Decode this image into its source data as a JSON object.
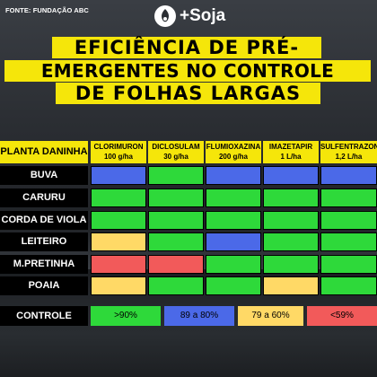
{
  "source": "FONTE: FUNDAÇÃO ABC",
  "brand": "+Soja",
  "title_lines": [
    "EFICIÊNCIA DE PRÉ-",
    "EMERGENTES NO CONTROLE",
    "DE FOLHAS LARGAS"
  ],
  "table": {
    "plant_header": "PLANTA DANINHA",
    "herbicides": [
      {
        "name": "CLORIMURON",
        "dose": "100 g/ha"
      },
      {
        "name": "DICLOSULAM",
        "dose": "30 g/ha"
      },
      {
        "name": "FLUMIOXAZINA",
        "dose": "200 g/ha"
      },
      {
        "name": "IMAZETAPIR",
        "dose": "1 L/ha"
      },
      {
        "name": "SULFENTRAZONE",
        "dose": "1,2 L/ha"
      }
    ],
    "rows": [
      {
        "plant": "BUVA",
        "levels": [
          "blue",
          "green",
          "blue",
          "blue",
          "blue"
        ]
      },
      {
        "plant": "CARURU",
        "levels": [
          "green",
          "green",
          "green",
          "green",
          "green"
        ]
      },
      {
        "plant": "CORDA DE VIOLA",
        "levels": [
          "green",
          "green",
          "green",
          "green",
          "green"
        ]
      },
      {
        "plant": "LEITEIRO",
        "levels": [
          "yellow",
          "green",
          "blue",
          "green",
          "green"
        ]
      },
      {
        "plant": "M.PRETINHA",
        "levels": [
          "red",
          "red",
          "green",
          "green",
          "green"
        ]
      },
      {
        "plant": "POAIA",
        "levels": [
          "yellow",
          "green",
          "green",
          "yellow",
          "green"
        ]
      }
    ]
  },
  "control": {
    "label": "CONTROLE",
    "legend": [
      {
        "level": "green",
        "text": ">90%"
      },
      {
        "level": "blue",
        "text": "89 a 80%"
      },
      {
        "level": "yellow",
        "text": "79 a 60%"
      },
      {
        "level": "red",
        "text": "<59%"
      }
    ]
  },
  "colors": {
    "green": "#2ed93a",
    "blue": "#4b69e8",
    "yellow": "#ffd966",
    "red": "#f25a5a",
    "accent_yellow": "#f5e60a"
  }
}
